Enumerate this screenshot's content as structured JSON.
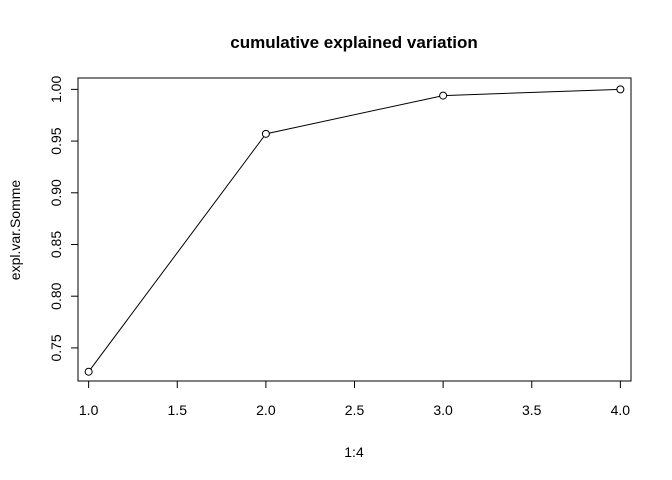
{
  "chart_data": {
    "type": "line",
    "title": "cumulative explained variation",
    "xlabel": "1:4",
    "ylabel": "expl.var.Somme",
    "x": [
      1,
      2,
      3,
      4
    ],
    "series": [
      {
        "values": [
          0.727,
          0.957,
          0.994,
          1.0
        ]
      }
    ],
    "xlim": [
      0.94,
      4.06
    ],
    "ylim": [
      0.718,
      1.011
    ],
    "xticks": [
      1.0,
      1.5,
      2.0,
      2.5,
      3.0,
      3.5,
      4.0
    ],
    "xtick_labels": [
      "1.0",
      "1.5",
      "2.0",
      "2.5",
      "3.0",
      "3.5",
      "4.0"
    ],
    "yticks": [
      0.75,
      0.8,
      0.85,
      0.9,
      0.95,
      1.0
    ],
    "ytick_labels": [
      "0.75",
      "0.80",
      "0.85",
      "0.90",
      "0.95",
      "1.00"
    ],
    "grid": false,
    "markers": "open-circle",
    "line_color": "#000000"
  }
}
